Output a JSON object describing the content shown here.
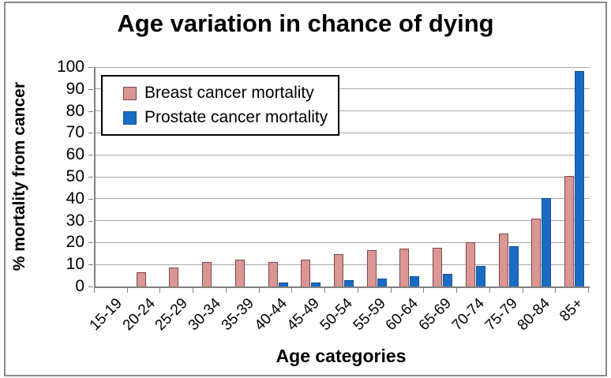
{
  "window": {
    "background": "#ffffff",
    "frame_border_color": "#8a8a8a"
  },
  "chart_data": {
    "type": "bar",
    "title": "Age variation in chance of dying",
    "xlabel": "Age categories",
    "ylabel": "% mortality from cancer",
    "ylim": [
      0,
      100
    ],
    "yticks": [
      0,
      10,
      20,
      30,
      40,
      50,
      60,
      70,
      80,
      90,
      100
    ],
    "grid": true,
    "legend_position": "top-left",
    "gridline_color": "#a6a6a6",
    "axis_color": "#808080",
    "categories": [
      "15-19",
      "20-24",
      "25-29",
      "30-34",
      "35-39",
      "40-44",
      "45-49",
      "50-54",
      "55-59",
      "60-64",
      "65-69",
      "70-74",
      "75-79",
      "80-84",
      "85+"
    ],
    "series": [
      {
        "name": "Breast cancer mortality",
        "color": "#d99694",
        "border_color": "#7e4745",
        "values": [
          0,
          6.3,
          8.5,
          11.2,
          12.2,
          11.3,
          12.1,
          14.6,
          16.7,
          17.1,
          17.6,
          20.0,
          24.1,
          31.0,
          50.2
        ]
      },
      {
        "name": "Prostate cancer mortality",
        "color": "#1a6bc4",
        "border_color": "#15549a",
        "values": [
          0,
          0,
          0,
          0,
          0,
          1.8,
          1.9,
          2.9,
          3.6,
          4.6,
          5.8,
          9.5,
          18.3,
          40.3,
          98.3
        ]
      }
    ]
  }
}
